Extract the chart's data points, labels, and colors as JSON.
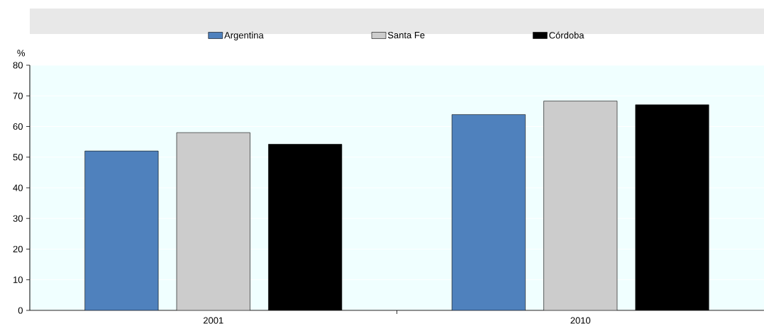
{
  "chart_data": {
    "type": "bar",
    "ylabel": "%",
    "categories": [
      "2001",
      "2010"
    ],
    "series": [
      {
        "name": "Argentina",
        "color": "#4f81bd",
        "values": [
          52.0,
          63.9
        ]
      },
      {
        "name": "Santa Fe",
        "color": "#cccccc",
        "values": [
          58.0,
          68.3
        ]
      },
      {
        "name": "Córdoba",
        "color": "#000000",
        "values": [
          54.2,
          67.1
        ]
      }
    ],
    "ylim": [
      0,
      80
    ],
    "yticks": [
      0,
      10,
      20,
      30,
      40,
      50,
      60,
      70,
      80
    ],
    "grid": "y",
    "legend": "top"
  }
}
